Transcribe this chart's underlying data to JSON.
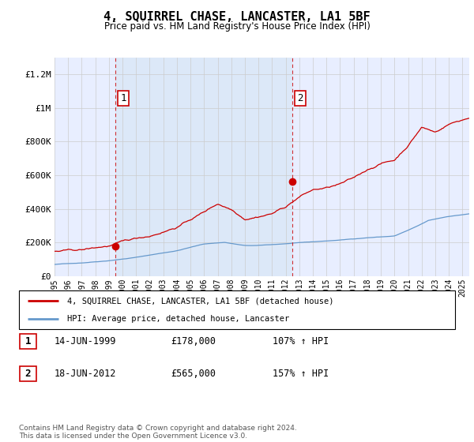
{
  "title": "4, SQUIRREL CHASE, LANCASTER, LA1 5BF",
  "subtitle": "Price paid vs. HM Land Registry's House Price Index (HPI)",
  "x_start": 1995.0,
  "x_end": 2025.5,
  "ylim": [
    0,
    1300000
  ],
  "yticks": [
    0,
    200000,
    400000,
    600000,
    800000,
    1000000,
    1200000
  ],
  "ytick_labels": [
    "£0",
    "£200K",
    "£400K",
    "£600K",
    "£800K",
    "£1M",
    "£1.2M"
  ],
  "xticks": [
    1995,
    1996,
    1997,
    1998,
    1999,
    2000,
    2001,
    2002,
    2003,
    2004,
    2005,
    2006,
    2007,
    2008,
    2009,
    2010,
    2011,
    2012,
    2013,
    2014,
    2015,
    2016,
    2017,
    2018,
    2019,
    2020,
    2021,
    2022,
    2023,
    2024,
    2025
  ],
  "sale1_x": 1999.454,
  "sale1_y": 178000,
  "sale1_label": "1",
  "sale2_x": 2012.463,
  "sale2_y": 565000,
  "sale2_label": "2",
  "vline1_x": 1999.454,
  "vline2_x": 2012.463,
  "red_line_color": "#cc0000",
  "blue_line_color": "#6699cc",
  "vline_color": "#cc0000",
  "grid_color": "#cccccc",
  "bg_color": "#ffffff",
  "plot_bg_color": "#e8eeff",
  "shade_color": "#dce8f8",
  "legend_house": "4, SQUIRREL CHASE, LANCASTER, LA1 5BF (detached house)",
  "legend_hpi": "HPI: Average price, detached house, Lancaster",
  "note1_label": "1",
  "note1_date": "14-JUN-1999",
  "note1_price": "£178,000",
  "note1_hpi": "107% ↑ HPI",
  "note2_label": "2",
  "note2_date": "18-JUN-2012",
  "note2_price": "£565,000",
  "note2_hpi": "157% ↑ HPI",
  "footer": "Contains HM Land Registry data © Crown copyright and database right 2024.\nThis data is licensed under the Open Government Licence v3.0."
}
